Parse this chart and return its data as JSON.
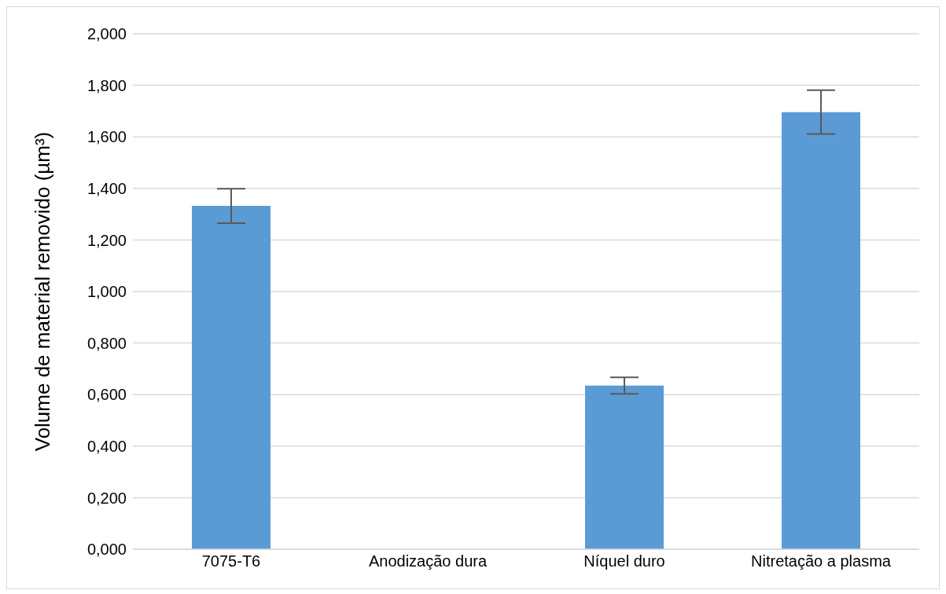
{
  "chart_data": {
    "type": "bar",
    "ylabel": "Volume de material removido (µm³)",
    "categories": [
      "7075-T6",
      "Anodização dura",
      "Níquel duro",
      "Nitretação a plasma"
    ],
    "values": [
      1.332,
      0,
      0.635,
      1.696
    ],
    "errors": [
      0.067,
      null,
      0.032,
      0.085
    ],
    "color": "#5b9bd5",
    "ylim": [
      0,
      2
    ],
    "yticks": [
      {
        "value": 0,
        "label": "0,000"
      },
      {
        "value": 0.2,
        "label": "0,200"
      },
      {
        "value": 0.4,
        "label": "0,400"
      },
      {
        "value": 0.6,
        "label": "0,600"
      },
      {
        "value": 0.8,
        "label": "0,800"
      },
      {
        "value": 1,
        "label": "1,000"
      },
      {
        "value": 1.2,
        "label": "1,200"
      },
      {
        "value": 1.4,
        "label": "1,400"
      },
      {
        "value": 1.6,
        "label": "1,600"
      },
      {
        "value": 1.8,
        "label": "1,800"
      },
      {
        "value": 2,
        "label": "2,000"
      }
    ],
    "grid": "y"
  }
}
